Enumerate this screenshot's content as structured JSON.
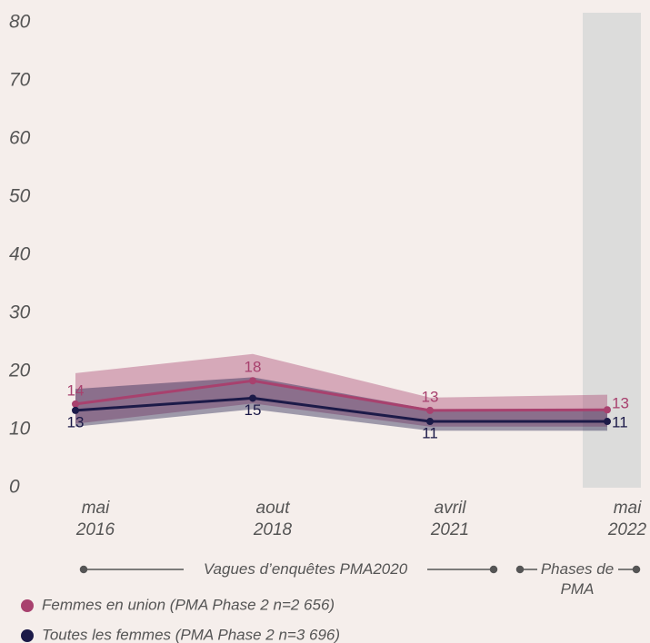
{
  "chart_data": {
    "type": "line",
    "categories": [
      "mai 2016",
      "aout 2018",
      "avril 2021",
      "mai 2022"
    ],
    "ylim": [
      0,
      80
    ],
    "yticks": [
      0,
      10,
      20,
      30,
      40,
      50,
      60,
      70,
      80
    ],
    "series": [
      {
        "name": "Femmes en union (PMA Phase 2 n=2 656)",
        "color": "#a8416e",
        "values": [
          14.4,
          18.4,
          13.3,
          13.4
        ],
        "value_labels": [
          "14",
          "18",
          "13",
          "13"
        ],
        "lower": [
          11,
          14.5,
          10.5,
          10.5
        ],
        "upper": [
          19.7,
          23,
          15.5,
          16
        ]
      },
      {
        "name": "Toutes les femmes (PMA Phase 2 n=3 696)",
        "color": "#1c1a48",
        "values": [
          13.3,
          15.4,
          11.4,
          11.4
        ],
        "value_labels": [
          "13",
          "15",
          "11",
          "11"
        ],
        "lower": [
          10.5,
          13.5,
          9.8,
          9.8
        ],
        "upper": [
          17,
          19,
          13.5,
          13.5
        ]
      }
    ],
    "annotations": [
      "Vagues d’enquêtes PMA2020",
      "Phases de PMA"
    ]
  }
}
